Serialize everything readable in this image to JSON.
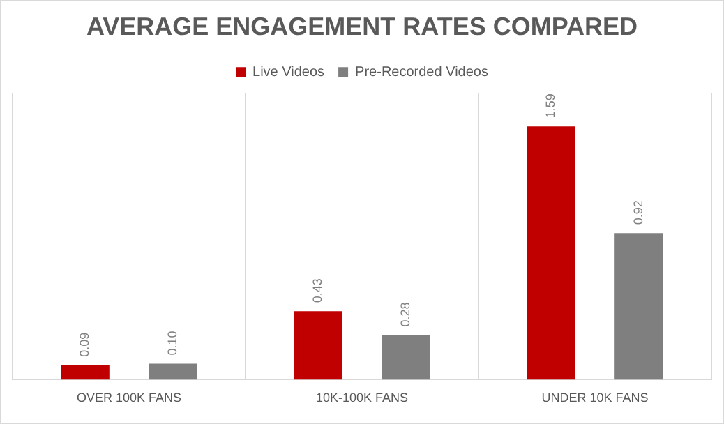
{
  "chart_data": {
    "type": "bar",
    "title": "AVERAGE ENGAGEMENT RATES COMPARED",
    "categories": [
      "OVER 100K FANS",
      "10K-100K FANS",
      "UNDER 10K FANS"
    ],
    "series": [
      {
        "name": "Live Videos",
        "color": "#c00000",
        "values": [
          0.09,
          0.43,
          1.59
        ],
        "value_labels": [
          "0.09",
          "0.43",
          "1.59"
        ]
      },
      {
        "name": "Pre-Recorded Videos",
        "color": "#7f7f7f",
        "values": [
          0.1,
          0.28,
          0.92
        ],
        "value_labels": [
          "0.10",
          "0.28",
          "0.92"
        ]
      }
    ],
    "grid": "x",
    "legend": "top"
  }
}
